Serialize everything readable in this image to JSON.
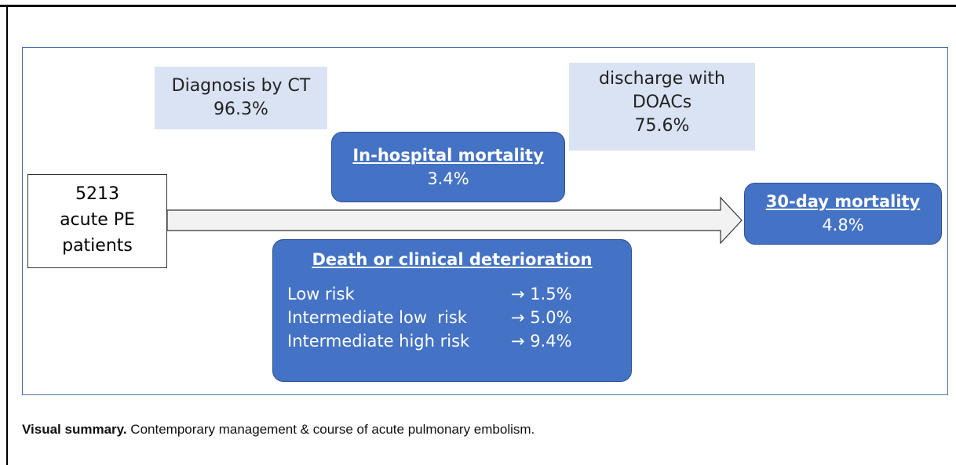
{
  "diagram": {
    "start": {
      "lines": [
        "5213",
        "acute PE",
        "patients"
      ]
    },
    "diagnosis": {
      "lines": [
        "Diagnosis by CT",
        "96.3%"
      ]
    },
    "discharge": {
      "lines": [
        "discharge with",
        "DOACs",
        "75.6%"
      ]
    },
    "in_hospital": {
      "title": "In-hospital mortality",
      "value": "3.4%"
    },
    "thirty_day": {
      "title": "30-day mortality",
      "value": "4.8%"
    },
    "deterioration": {
      "title": "Death or clinical deterioration",
      "rows": [
        [
          "Low risk",
          "→ 1.5%"
        ],
        [
          "Intermediate low  risk",
          "→ 5.0%"
        ],
        [
          "Intermediate high risk",
          "→ 9.4%"
        ]
      ]
    }
  },
  "caption": {
    "label": "Visual summary.",
    "text": "Contemporary management & course of acute pulmonary embolism."
  }
}
